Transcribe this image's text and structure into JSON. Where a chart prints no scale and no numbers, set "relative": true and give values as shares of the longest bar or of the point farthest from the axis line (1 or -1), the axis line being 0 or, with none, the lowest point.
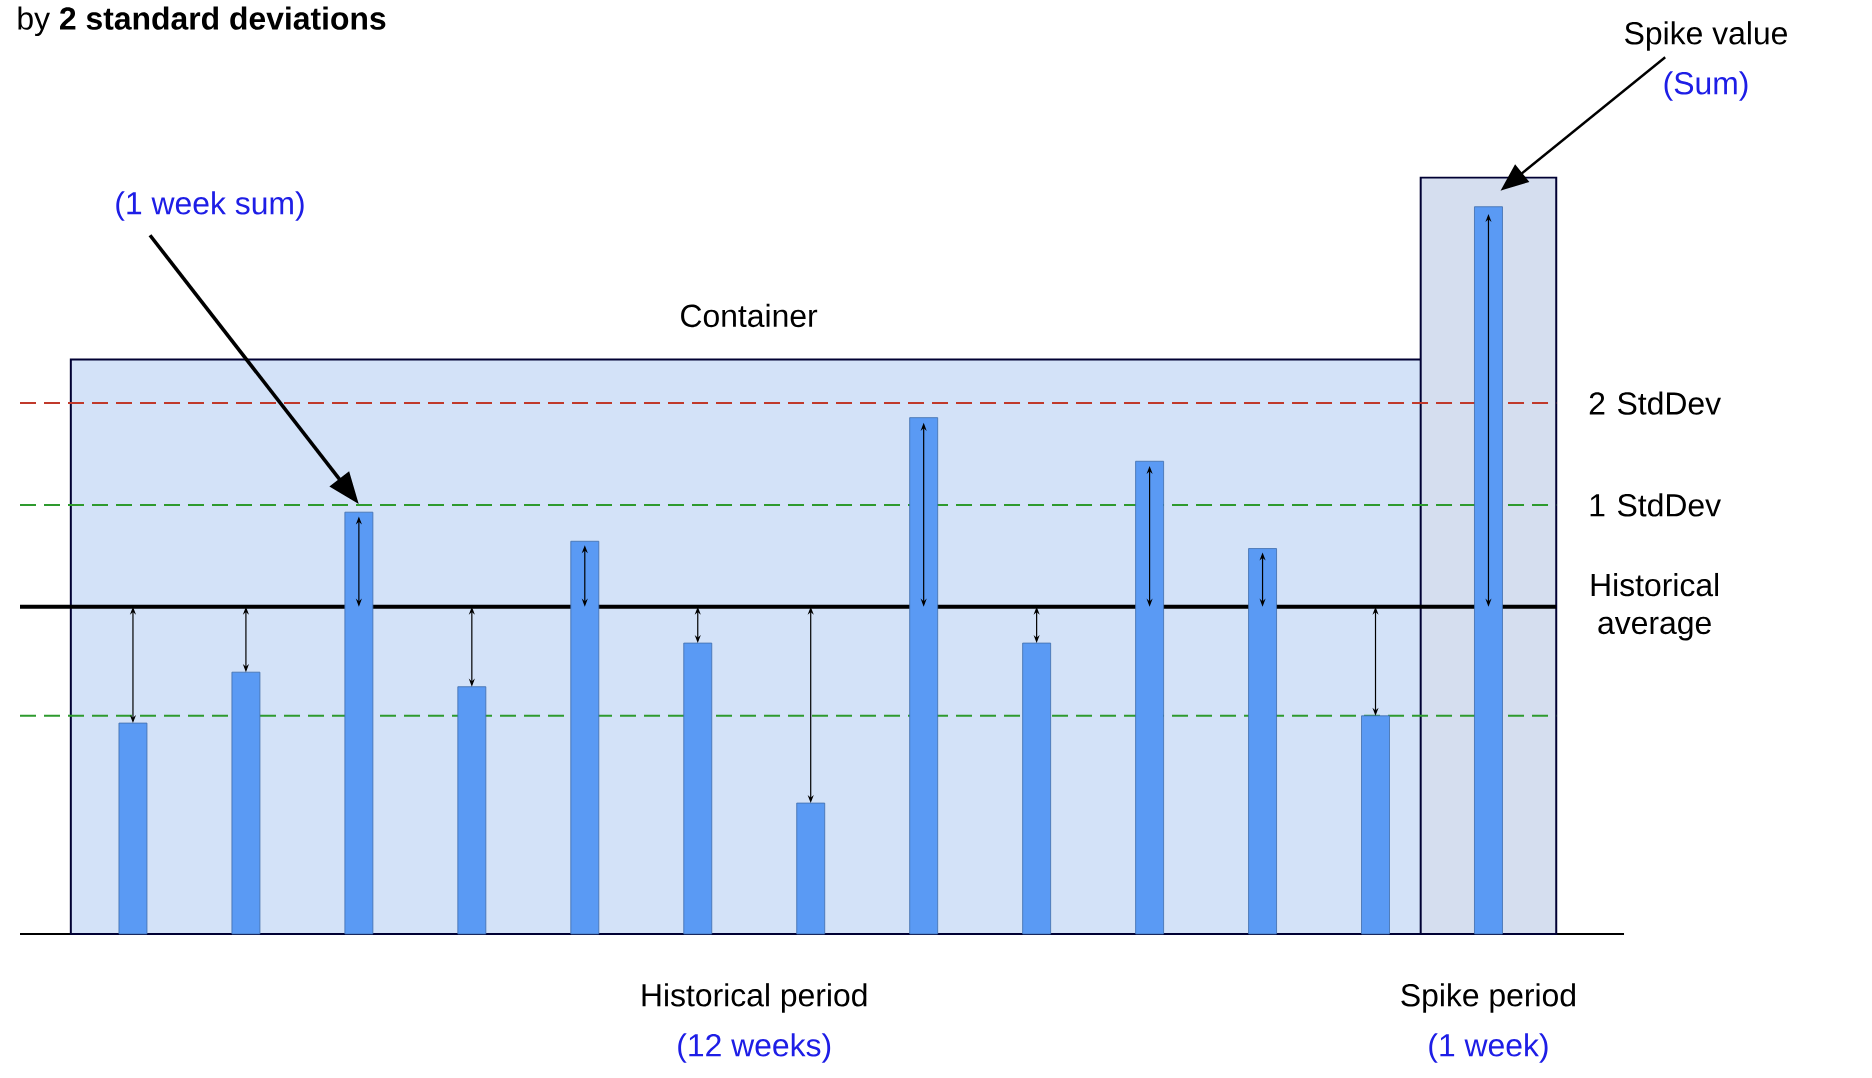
{
  "chart_data": {
    "type": "bar",
    "relative": true,
    "title": "by **2 standard deviations**",
    "categories": [
      null,
      null,
      null,
      null,
      null,
      null,
      null,
      null,
      null,
      null,
      null,
      null,
      null
    ],
    "values": [
      0.29,
      0.36,
      0.58,
      0.34,
      0.54,
      0.4,
      0.18,
      0.71,
      0.4,
      0.65,
      0.53,
      0.3,
      1
    ],
    "color": "#5a9af4",
    "ref_lines": [
      {
        "axis": "y",
        "value": 0.73,
        "label": "2 StdDev",
        "color": "#c0392b",
        "line_style": "dashed"
      },
      {
        "axis": "y",
        "value": 0.59,
        "label": "1 StdDev",
        "color": "#2e9a2e",
        "line_style": "dashed"
      },
      {
        "axis": "y",
        "value": 0.45,
        "label": "Historical average",
        "color": "#000000",
        "line_style": "solid"
      },
      {
        "axis": "y",
        "value": 0.3,
        "color": "#2e9a2e",
        "line_style": "dashed"
      }
    ],
    "annotations": [
      "(1 week sum)",
      "Spike value",
      "(Sum)",
      "Historical period",
      "(12 weeks)",
      "Spike period",
      "(1 week)",
      "Container"
    ]
  }
}
